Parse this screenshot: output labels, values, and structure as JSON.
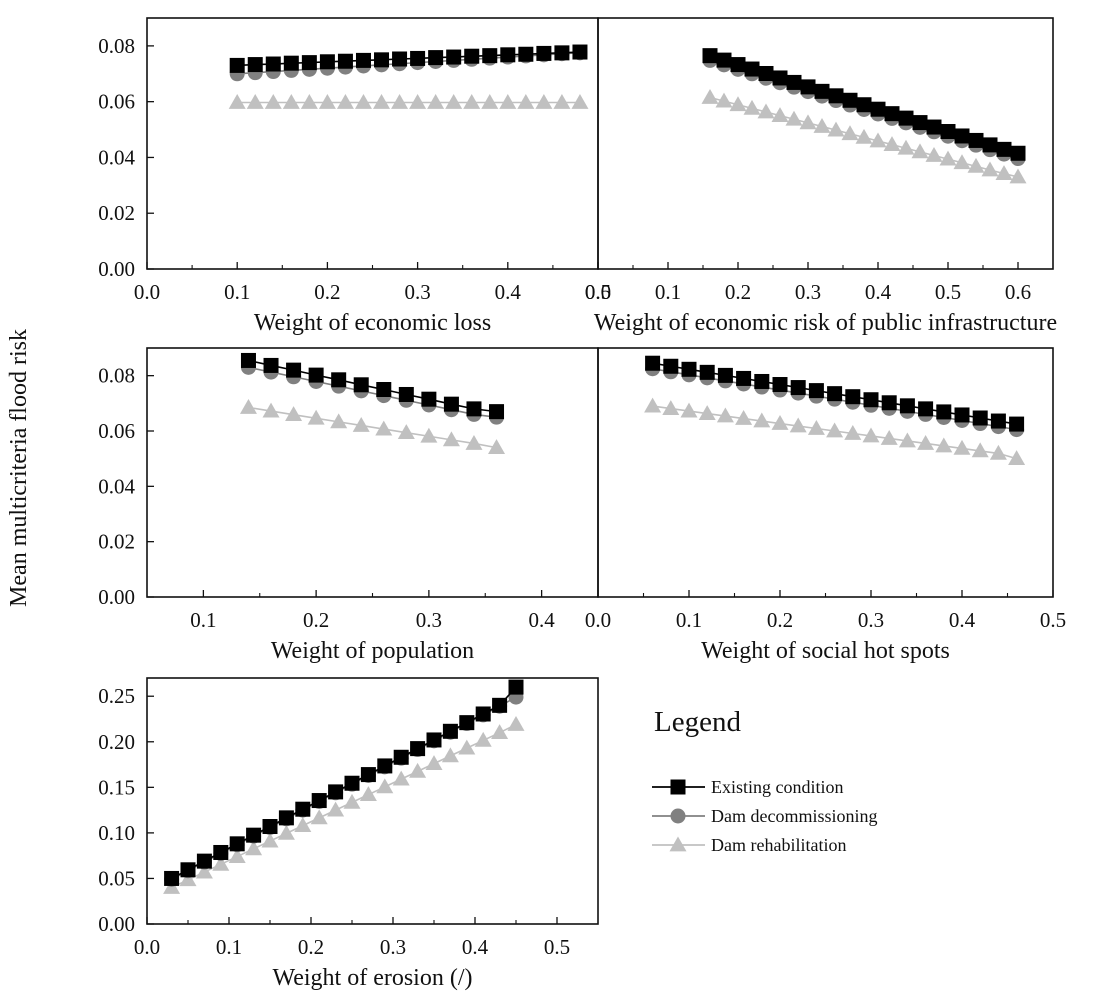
{
  "figure": {
    "ylabel": "Mean multicriteria flood risk",
    "legend_title": "Legend"
  },
  "colors": {
    "existing": "#000000",
    "decommissioning": "#808080",
    "rehabilitation": "#c0c0c0",
    "axes": "#111111"
  },
  "legend": [
    {
      "key": "existing",
      "label": "Existing condition",
      "marker": "square"
    },
    {
      "key": "decommissioning",
      "label": "Dam decommissioning",
      "marker": "circle"
    },
    {
      "key": "rehabilitation",
      "label": "Dam rehabilitation",
      "marker": "triangle"
    }
  ],
  "chart_data": [
    {
      "type": "line",
      "name": "panel-economic-loss",
      "xlabel": "Weight of economic loss",
      "ylabel": "Mean multicriteria flood risk",
      "xlim": [
        0.0,
        0.5
      ],
      "ylim": [
        0.0,
        0.09
      ],
      "xticks": [
        "0.0",
        "0.1",
        "0.2",
        "0.3",
        "0.4",
        "0.5"
      ],
      "yticks": [
        "0.00",
        "0.02",
        "0.04",
        "0.06",
        "0.08"
      ],
      "x": [
        0.1,
        0.12,
        0.14,
        0.16,
        0.18,
        0.2,
        0.22,
        0.24,
        0.26,
        0.28,
        0.3,
        0.32,
        0.34,
        0.36,
        0.38,
        0.4,
        0.42,
        0.44,
        0.46,
        0.48
      ],
      "series": [
        {
          "name": "Existing condition",
          "values": [
            0.073,
            0.0733,
            0.0735,
            0.0738,
            0.074,
            0.0743,
            0.0745,
            0.0748,
            0.075,
            0.0753,
            0.0755,
            0.0758,
            0.076,
            0.0763,
            0.0765,
            0.0768,
            0.077,
            0.0773,
            0.0775,
            0.0778
          ]
        },
        {
          "name": "Dam decommissioning",
          "values": [
            0.07,
            0.0704,
            0.0708,
            0.0712,
            0.0716,
            0.072,
            0.0724,
            0.0728,
            0.0732,
            0.0736,
            0.074,
            0.0744,
            0.0748,
            0.0752,
            0.0756,
            0.076,
            0.0764,
            0.0768,
            0.0772,
            0.0775
          ]
        },
        {
          "name": "Dam rehabilitation",
          "values": [
            0.0597,
            0.0597,
            0.0597,
            0.0597,
            0.0597,
            0.0597,
            0.0597,
            0.0597,
            0.0597,
            0.0597,
            0.0597,
            0.0597,
            0.0597,
            0.0597,
            0.0597,
            0.0597,
            0.0597,
            0.0597,
            0.0597,
            0.0597
          ]
        }
      ]
    },
    {
      "type": "line",
      "name": "panel-public-infrastructure",
      "xlabel": "Weight of  economic risk of public infrastructure",
      "ylabel": "",
      "xlim": [
        0.0,
        0.65
      ],
      "ylim": [
        0.0,
        0.09
      ],
      "xticks": [
        "0.0",
        "0.1",
        "0.2",
        "0.3",
        "0.4",
        "0.5",
        "0.6"
      ],
      "yticks": [],
      "x": [
        0.16,
        0.18,
        0.2,
        0.22,
        0.24,
        0.26,
        0.28,
        0.3,
        0.32,
        0.34,
        0.36,
        0.38,
        0.4,
        0.42,
        0.44,
        0.46,
        0.48,
        0.5,
        0.52,
        0.54,
        0.56,
        0.58,
        0.6
      ],
      "series": [
        {
          "name": "Existing condition",
          "values": [
            0.0765,
            0.0749,
            0.0733,
            0.0717,
            0.0701,
            0.0685,
            0.0669,
            0.0653,
            0.0637,
            0.0621,
            0.0605,
            0.0589,
            0.0573,
            0.0557,
            0.0541,
            0.0525,
            0.0509,
            0.0493,
            0.0477,
            0.0461,
            0.0445,
            0.0429,
            0.0415
          ]
        },
        {
          "name": "Dam decommissioning",
          "values": [
            0.0748,
            0.0732,
            0.0716,
            0.07,
            0.0684,
            0.0668,
            0.0652,
            0.0636,
            0.062,
            0.0604,
            0.0588,
            0.0572,
            0.0556,
            0.054,
            0.0524,
            0.0508,
            0.0492,
            0.0476,
            0.046,
            0.0444,
            0.0428,
            0.0412,
            0.0396
          ]
        },
        {
          "name": "Dam rehabilitation",
          "values": [
            0.0615,
            0.0602,
            0.0589,
            0.0576,
            0.0563,
            0.055,
            0.0537,
            0.0524,
            0.0511,
            0.0498,
            0.0485,
            0.0472,
            0.0459,
            0.0446,
            0.0433,
            0.042,
            0.0407,
            0.0394,
            0.0381,
            0.0368,
            0.0355,
            0.0342,
            0.033
          ]
        }
      ]
    },
    {
      "type": "line",
      "name": "panel-population",
      "xlabel": "Weight of population",
      "ylabel": "Mean multicriteria flood risk",
      "xlim": [
        0.05,
        0.45
      ],
      "ylim": [
        0.0,
        0.09
      ],
      "xticks": [
        "0.1",
        "0.2",
        "0.3",
        "0.4"
      ],
      "yticks": [
        "0.00",
        "0.02",
        "0.04",
        "0.06",
        "0.08"
      ],
      "x": [
        0.14,
        0.16,
        0.18,
        0.2,
        0.22,
        0.24,
        0.26,
        0.28,
        0.3,
        0.32,
        0.34,
        0.36
      ],
      "series": [
        {
          "name": "Existing condition",
          "values": [
            0.0855,
            0.0837,
            0.082,
            0.0802,
            0.0785,
            0.0767,
            0.075,
            0.0732,
            0.0715,
            0.0697,
            0.068,
            0.067
          ]
        },
        {
          "name": "Dam decommissioning",
          "values": [
            0.083,
            0.0813,
            0.0796,
            0.0779,
            0.0762,
            0.0745,
            0.0728,
            0.0711,
            0.0694,
            0.0677,
            0.066,
            0.065
          ]
        },
        {
          "name": "Dam rehabilitation",
          "values": [
            0.0685,
            0.0672,
            0.0659,
            0.0646,
            0.0633,
            0.062,
            0.0607,
            0.0594,
            0.0581,
            0.0568,
            0.0555,
            0.054
          ]
        }
      ]
    },
    {
      "type": "line",
      "name": "panel-social-hot-spots",
      "xlabel": "Weight of social hot spots",
      "ylabel": "",
      "xlim": [
        0.0,
        0.5
      ],
      "ylim": [
        0.0,
        0.09
      ],
      "xticks": [
        "0.0",
        "0.1",
        "0.2",
        "0.3",
        "0.4",
        "0.5"
      ],
      "yticks": [],
      "x": [
        0.06,
        0.08,
        0.1,
        0.12,
        0.14,
        0.16,
        0.18,
        0.2,
        0.22,
        0.24,
        0.26,
        0.28,
        0.3,
        0.32,
        0.34,
        0.36,
        0.38,
        0.4,
        0.42,
        0.44,
        0.46
      ],
      "series": [
        {
          "name": "Existing condition",
          "values": [
            0.0845,
            0.0834,
            0.0823,
            0.0812,
            0.0801,
            0.079,
            0.0779,
            0.0768,
            0.0757,
            0.0746,
            0.0735,
            0.0724,
            0.0713,
            0.0702,
            0.0691,
            0.068,
            0.0669,
            0.0658,
            0.0647,
            0.0636,
            0.0625
          ]
        },
        {
          "name": "Dam decommissioning",
          "values": [
            0.0825,
            0.0814,
            0.0803,
            0.0792,
            0.0781,
            0.077,
            0.0759,
            0.0748,
            0.0737,
            0.0726,
            0.0715,
            0.0704,
            0.0693,
            0.0682,
            0.0671,
            0.066,
            0.0649,
            0.0638,
            0.0627,
            0.0616,
            0.0605
          ]
        },
        {
          "name": "Dam rehabilitation",
          "values": [
            0.069,
            0.0681,
            0.0672,
            0.0663,
            0.0654,
            0.0645,
            0.0636,
            0.0627,
            0.0618,
            0.0609,
            0.06,
            0.0591,
            0.0582,
            0.0573,
            0.0564,
            0.0555,
            0.0546,
            0.0537,
            0.0528,
            0.0519,
            0.05
          ]
        }
      ]
    },
    {
      "type": "line",
      "name": "panel-erosion",
      "xlabel": "Weight of erosion (/)",
      "ylabel": "Mean multicriteria flood risk",
      "xlim": [
        0.0,
        0.55
      ],
      "ylim": [
        0.0,
        0.27
      ],
      "xticks": [
        "0.0",
        "0.1",
        "0.2",
        "0.3",
        "0.4",
        "0.5"
      ],
      "yticks": [
        "0.00",
        "0.05",
        "0.10",
        "0.15",
        "0.20",
        "0.25"
      ],
      "x": [
        0.03,
        0.05,
        0.07,
        0.09,
        0.11,
        0.13,
        0.15,
        0.17,
        0.19,
        0.21,
        0.23,
        0.25,
        0.27,
        0.29,
        0.31,
        0.33,
        0.35,
        0.37,
        0.39,
        0.41,
        0.43,
        0.45
      ],
      "series": [
        {
          "name": "Existing condition",
          "values": [
            0.05,
            0.0595,
            0.069,
            0.0785,
            0.088,
            0.0975,
            0.107,
            0.1165,
            0.126,
            0.1355,
            0.145,
            0.1545,
            0.164,
            0.1735,
            0.183,
            0.1925,
            0.202,
            0.2115,
            0.221,
            0.2305,
            0.24,
            0.26
          ]
        },
        {
          "name": "Dam decommissioning",
          "values": [
            0.049,
            0.0585,
            0.068,
            0.0775,
            0.087,
            0.0965,
            0.106,
            0.1155,
            0.125,
            0.1345,
            0.144,
            0.1535,
            0.163,
            0.1725,
            0.182,
            0.1915,
            0.201,
            0.2105,
            0.22,
            0.2295,
            0.239,
            0.249
          ]
        },
        {
          "name": "Dam rehabilitation",
          "values": [
            0.04,
            0.0485,
            0.057,
            0.0655,
            0.074,
            0.0825,
            0.091,
            0.0995,
            0.108,
            0.1165,
            0.125,
            0.1335,
            0.142,
            0.1505,
            0.159,
            0.1675,
            0.176,
            0.1845,
            0.193,
            0.2015,
            0.21,
            0.219
          ]
        }
      ]
    }
  ]
}
